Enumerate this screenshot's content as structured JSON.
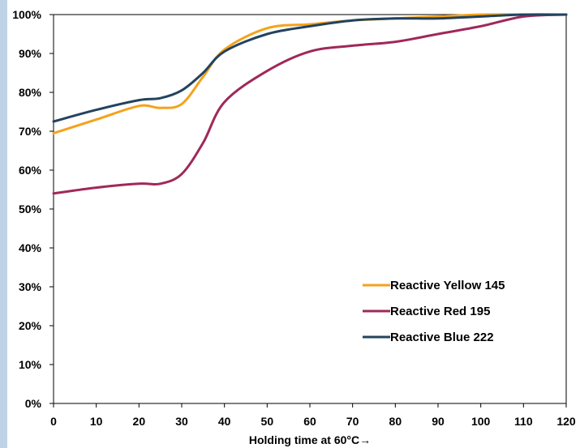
{
  "chart_data": {
    "type": "line",
    "title": "",
    "xlabel": "Holding time at 60°C→",
    "ylabel": "",
    "xlim": [
      0,
      120
    ],
    "ylim": [
      0,
      100
    ],
    "x_ticks": [
      "0",
      "10",
      "20",
      "30",
      "40",
      "50",
      "60",
      "70",
      "80",
      "90",
      "100",
      "110",
      "120"
    ],
    "y_ticks": [
      "0%",
      "10%",
      "20%",
      "30%",
      "40%",
      "50%",
      "60%",
      "70%",
      "80%",
      "90%",
      "100%"
    ],
    "grid": false,
    "legend_position": "bottom-right",
    "series": [
      {
        "name": "Reactive Yellow 145",
        "color": "#f5a21b",
        "x": [
          0,
          10,
          20,
          25,
          30,
          35,
          40,
          50,
          60,
          70,
          80,
          90,
          100,
          110,
          120
        ],
        "y": [
          69.5,
          73,
          76.5,
          76,
          77,
          84,
          91,
          96.5,
          97.5,
          98.5,
          99,
          99.5,
          100,
          100,
          100
        ]
      },
      {
        "name": "Reactive Red 195",
        "color": "#a0285a",
        "x": [
          0,
          10,
          20,
          25,
          30,
          35,
          40,
          50,
          60,
          70,
          80,
          90,
          100,
          110,
          120
        ],
        "y": [
          54,
          55.5,
          56.5,
          56.5,
          59,
          67,
          77.5,
          85.5,
          90.5,
          92,
          93,
          95,
          97,
          99.5,
          100
        ]
      },
      {
        "name": "Reactive Blue 222",
        "color": "#23435e",
        "x": [
          0,
          10,
          20,
          25,
          30,
          35,
          40,
          50,
          60,
          70,
          80,
          90,
          100,
          110,
          120
        ],
        "y": [
          72.5,
          75.5,
          78,
          78.5,
          80.5,
          85,
          90.5,
          95,
          97,
          98.5,
          99,
          99,
          99.5,
          100,
          100
        ]
      }
    ]
  }
}
